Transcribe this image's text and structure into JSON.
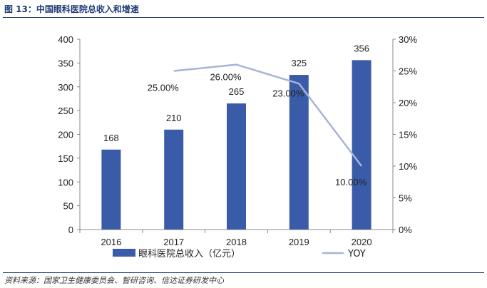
{
  "figure": {
    "title": "图 13：中国眼科医院总收入和增速",
    "source": "资料来源：国家卫生健康委员会、智研咨询、信达证券研发中心"
  },
  "colors": {
    "bar": "#3a5ca8",
    "line": "#a6b4d8",
    "rule": "#1f3b73"
  },
  "chart_data": {
    "type": "bar",
    "categories": [
      "2016",
      "2017",
      "2018",
      "2019",
      "2020"
    ],
    "series": [
      {
        "name": "眼科医院总收入（亿元）",
        "type": "bar",
        "axis": "left",
        "values": [
          168,
          210,
          265,
          325,
          356
        ],
        "labels": [
          "168",
          "210",
          "265",
          "325",
          "356"
        ]
      },
      {
        "name": "YOY",
        "type": "line",
        "axis": "right",
        "values": [
          null,
          25.0,
          26.0,
          23.0,
          10.0
        ],
        "labels": [
          "",
          "25.00%",
          "26.00%",
          "23.00%",
          "10.00%"
        ]
      }
    ],
    "y_left": {
      "range": [
        0,
        400
      ],
      "ticks": [
        "0",
        "50",
        "100",
        "150",
        "200",
        "250",
        "300",
        "350",
        "400"
      ]
    },
    "y_right": {
      "range": [
        0,
        30
      ],
      "ticks": [
        "0%",
        "5%",
        "10%",
        "15%",
        "20%",
        "25%",
        "30%"
      ]
    },
    "grid": false,
    "legend": "bottom-center"
  }
}
